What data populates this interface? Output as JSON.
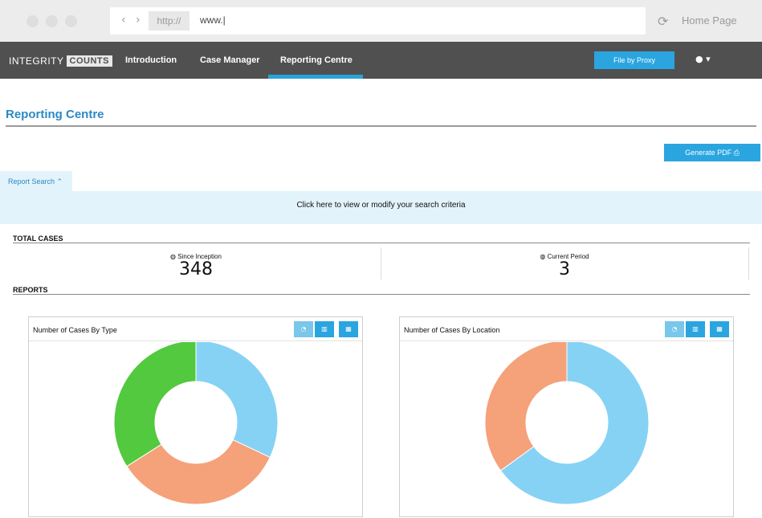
{
  "browser": {
    "nav_arrows": "‹ ›",
    "protocol": "http://",
    "url": "www.|",
    "home_page": "Home Page"
  },
  "nav": {
    "logo_part1": "INTEGRITY",
    "logo_part2": "COUNTS",
    "items": [
      "Introduction",
      "Case Manager",
      "Reporting Centre"
    ],
    "active_item": "Reporting Centre",
    "file_by_proxy": "File by Proxy",
    "user_menu": "● ▾"
  },
  "page": {
    "title": "Reporting Centre",
    "generate_pdf": "Generate PDF ⎙",
    "report_search_tab": "Report Search ⌃",
    "search_prompt": "Click here to view or modify your search criteria"
  },
  "total_cases": {
    "heading": "TOTAL CASES",
    "since_inception_label": "◍ Since Inception",
    "since_inception_value": "348",
    "current_period_label": "◍ Current Period",
    "current_period_value": "3"
  },
  "reports": {
    "heading": "REPORTS",
    "view_buttons": [
      "pie-icon",
      "bar-chart-icon",
      "table-icon"
    ],
    "view_button_glyphs": [
      "◔",
      "▥",
      "▦"
    ]
  },
  "chart_data": [
    {
      "type": "pie",
      "title": "Number of Cases By Type",
      "donut": true,
      "slices": [
        {
          "value": 32,
          "color": "#86d2f5"
        },
        {
          "value": 34,
          "color": "#f5a17a"
        },
        {
          "value": 34,
          "color": "#52c93e"
        }
      ]
    },
    {
      "type": "pie",
      "title": "Number of Cases By Location",
      "donut": true,
      "slices": [
        {
          "value": 65,
          "color": "#86d2f5"
        },
        {
          "value": 35,
          "color": "#f5a17a"
        }
      ]
    }
  ]
}
